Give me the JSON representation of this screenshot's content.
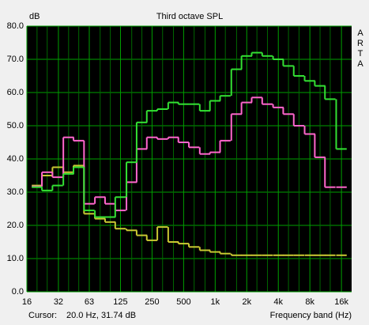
{
  "chart_data": {
    "type": "step",
    "title": "Third octave SPL",
    "y_label": "dB",
    "x_label": "Frequency band (Hz)",
    "watermark": "ARTA",
    "cursor": {
      "label": "Cursor:",
      "value": "20.0 Hz, 31.74 dB"
    },
    "log_x": true,
    "grid": true,
    "x": [
      20,
      25,
      31.5,
      40,
      50,
      63,
      80,
      100,
      125,
      160,
      200,
      250,
      315,
      400,
      500,
      630,
      800,
      1000,
      1250,
      1600,
      2000,
      2500,
      3150,
      4000,
      5000,
      6300,
      8000,
      10000,
      12500,
      16000
    ],
    "series": [
      {
        "color": "#c8c832",
        "values": [
          32,
          35,
          37.5,
          36,
          38,
          23.5,
          22,
          21,
          19,
          18.5,
          17,
          15.5,
          19.5,
          15,
          14.5,
          13.5,
          12.5,
          12,
          11.5,
          11,
          11,
          11,
          11,
          11,
          11,
          11,
          11,
          11,
          11,
          11
        ]
      },
      {
        "color": "#ff66cc",
        "values": [
          31.7,
          36,
          34.5,
          46.5,
          45.5,
          26.5,
          28.5,
          26.5,
          24.5,
          33,
          43,
          46.5,
          46,
          46.5,
          45,
          43.5,
          41.5,
          42,
          45.5,
          53.5,
          57,
          58.5,
          56.5,
          55.5,
          53.5,
          50,
          47.5,
          40.5,
          31.5,
          31.5
        ]
      },
      {
        "color": "#33e033",
        "values": [
          31.5,
          30.5,
          32,
          35.5,
          37.5,
          24.5,
          22.5,
          22.5,
          28.5,
          39,
          51,
          54.5,
          55,
          57,
          56.5,
          56.5,
          54.5,
          57.5,
          59,
          67,
          71,
          72,
          71,
          70,
          68,
          65,
          63.5,
          62,
          58,
          43
        ]
      }
    ],
    "xlim": [
      16,
      20000
    ],
    "xticks": [
      16,
      32,
      63,
      125,
      250,
      500,
      {
        "value": 1000,
        "label": "1k"
      },
      {
        "value": 2000,
        "label": "2k"
      },
      {
        "value": 4000,
        "label": "4k"
      },
      {
        "value": 8000,
        "label": "8k"
      },
      {
        "value": 16000,
        "label": "16k"
      }
    ],
    "x_minor_ticks": [
      20,
      25,
      40,
      50,
      80,
      100,
      160,
      200,
      315,
      400,
      630,
      800,
      1250,
      1600,
      2500,
      3150,
      5000,
      6300,
      10000,
      12500
    ],
    "ylim": [
      0,
      80
    ],
    "yticks": [
      {
        "value": 0,
        "label": "0.0"
      },
      {
        "value": 10,
        "label": "10.0"
      },
      {
        "value": 20,
        "label": "20.0"
      },
      {
        "value": 30,
        "label": "30.0"
      },
      {
        "value": 40,
        "label": "40.0"
      },
      {
        "value": 50,
        "label": "50.0"
      },
      {
        "value": 60,
        "label": "60.0"
      },
      {
        "value": 70,
        "label": "70.0"
      },
      {
        "value": 80,
        "label": "80.0"
      }
    ]
  }
}
